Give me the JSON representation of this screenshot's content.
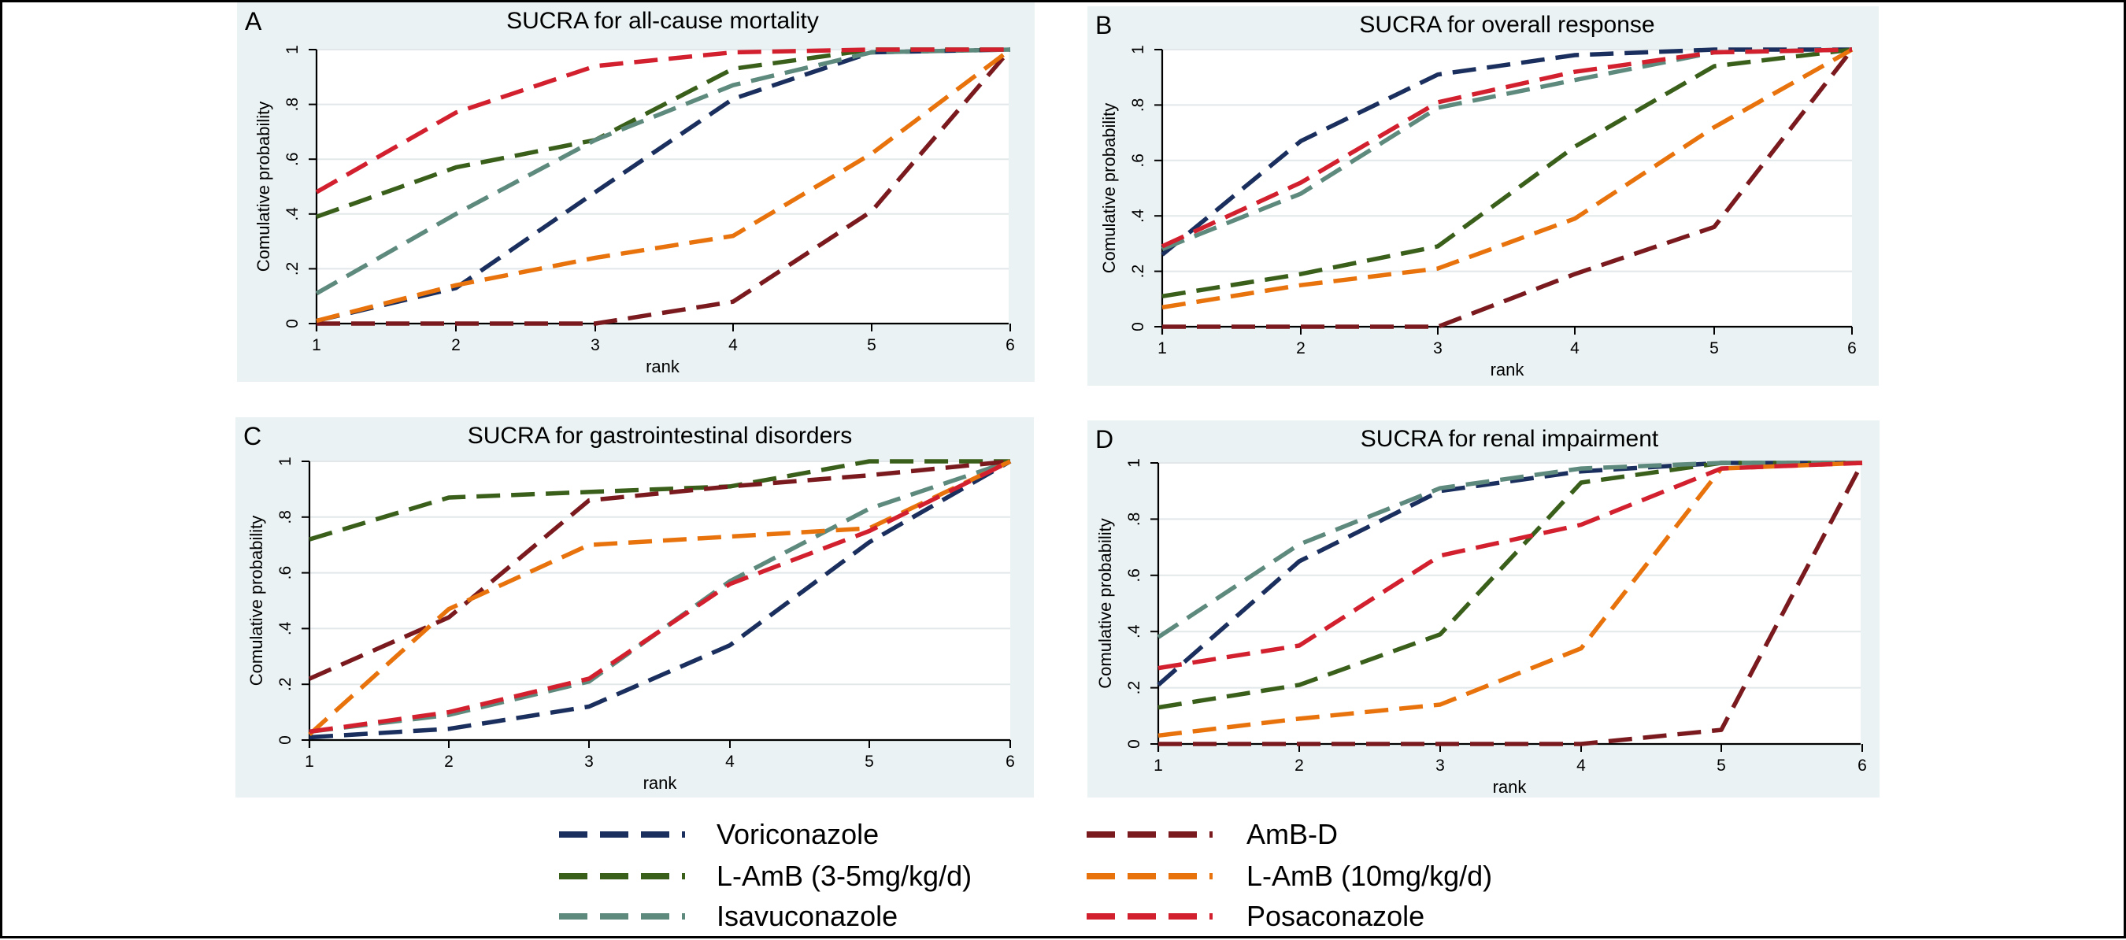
{
  "chart_data": [
    {
      "type": "line",
      "panel": "A",
      "title": "SUCRA for all-cause mortality",
      "xlabel": "rank",
      "ylabel": "Comulative probability",
      "x": [
        1,
        2,
        3,
        4,
        5,
        6
      ],
      "xticks": [
        "1",
        "2",
        "3",
        "4",
        "5",
        "6"
      ],
      "yticks": [
        "0",
        ".2",
        ".4",
        ".6",
        ".8",
        "1"
      ],
      "xlim": [
        1,
        6
      ],
      "ylim": [
        0,
        1
      ],
      "grid": true,
      "series": [
        {
          "name": "Voriconazole",
          "values": [
            0.01,
            0.13,
            0.48,
            0.82,
            0.99,
            1.0
          ]
        },
        {
          "name": "L-AmB (3-5mg/kg/d)",
          "values": [
            0.39,
            0.57,
            0.67,
            0.93,
            1.0,
            1.0
          ]
        },
        {
          "name": "Isavuconazole",
          "values": [
            0.11,
            0.4,
            0.67,
            0.87,
            0.99,
            1.0
          ]
        },
        {
          "name": "AmB-D",
          "values": [
            0.0,
            0.0,
            0.0,
            0.08,
            0.41,
            1.0
          ]
        },
        {
          "name": "L-AmB (10mg/kg/d)",
          "values": [
            0.01,
            0.14,
            0.24,
            0.32,
            0.62,
            1.0
          ]
        },
        {
          "name": "Posaconazole",
          "values": [
            0.48,
            0.77,
            0.94,
            0.99,
            1.0,
            1.0
          ]
        }
      ]
    },
    {
      "type": "line",
      "panel": "B",
      "title": "SUCRA for overall response",
      "xlabel": "rank",
      "ylabel": "Comulative probability",
      "x": [
        1,
        2,
        3,
        4,
        5,
        6
      ],
      "xticks": [
        "1",
        "2",
        "3",
        "4",
        "5",
        "6"
      ],
      "yticks": [
        "0",
        ".2",
        ".4",
        ".6",
        ".8",
        "1"
      ],
      "xlim": [
        1,
        6
      ],
      "ylim": [
        0,
        1
      ],
      "grid": true,
      "series": [
        {
          "name": "Voriconazole",
          "values": [
            0.26,
            0.67,
            0.91,
            0.98,
            1.0,
            1.0
          ]
        },
        {
          "name": "L-AmB (3-5mg/kg/d)",
          "values": [
            0.11,
            0.19,
            0.29,
            0.65,
            0.94,
            1.0
          ]
        },
        {
          "name": "Isavuconazole",
          "values": [
            0.28,
            0.48,
            0.79,
            0.89,
            0.99,
            1.0
          ]
        },
        {
          "name": "AmB-D",
          "values": [
            0.0,
            0.0,
            0.0,
            0.19,
            0.36,
            1.0
          ]
        },
        {
          "name": "L-AmB (10mg/kg/d)",
          "values": [
            0.07,
            0.15,
            0.21,
            0.39,
            0.72,
            1.0
          ]
        },
        {
          "name": "Posaconazole",
          "values": [
            0.29,
            0.52,
            0.81,
            0.92,
            0.99,
            1.0
          ]
        }
      ]
    },
    {
      "type": "line",
      "panel": "C",
      "title": "SUCRA for gastrointestinal disorders",
      "xlabel": "rank",
      "ylabel": "Comulative probability",
      "x": [
        1,
        2,
        3,
        4,
        5,
        6
      ],
      "xticks": [
        "1",
        "2",
        "3",
        "4",
        "5",
        "6"
      ],
      "yticks": [
        "0",
        ".2",
        ".4",
        ".6",
        ".8",
        "1"
      ],
      "xlim": [
        1,
        6
      ],
      "ylim": [
        0,
        1
      ],
      "grid": true,
      "series": [
        {
          "name": "Voriconazole",
          "values": [
            0.01,
            0.04,
            0.12,
            0.34,
            0.71,
            1.0
          ]
        },
        {
          "name": "L-AmB (3-5mg/kg/d)",
          "values": [
            0.72,
            0.87,
            0.89,
            0.91,
            1.0,
            1.0
          ]
        },
        {
          "name": "Isavuconazole",
          "values": [
            0.03,
            0.09,
            0.21,
            0.57,
            0.83,
            1.0
          ]
        },
        {
          "name": "AmB-D",
          "values": [
            0.22,
            0.44,
            0.86,
            0.91,
            0.95,
            1.0
          ]
        },
        {
          "name": "L-AmB (10mg/kg/d)",
          "values": [
            0.02,
            0.47,
            0.7,
            0.73,
            0.76,
            1.0
          ]
        },
        {
          "name": "Posaconazole",
          "values": [
            0.03,
            0.1,
            0.22,
            0.56,
            0.75,
            1.0
          ]
        }
      ]
    },
    {
      "type": "line",
      "panel": "D",
      "title": "SUCRA for renal impairment",
      "xlabel": "rank",
      "ylabel": "Comulative probability",
      "x": [
        1,
        2,
        3,
        4,
        5,
        6
      ],
      "xticks": [
        "1",
        "2",
        "3",
        "4",
        "5",
        "6"
      ],
      "yticks": [
        "0",
        ".2",
        ".4",
        ".6",
        ".8",
        "1"
      ],
      "xlim": [
        1,
        6
      ],
      "ylim": [
        0,
        1
      ],
      "grid": true,
      "series": [
        {
          "name": "Voriconazole",
          "values": [
            0.21,
            0.65,
            0.9,
            0.97,
            1.0,
            1.0
          ]
        },
        {
          "name": "L-AmB (3-5mg/kg/d)",
          "values": [
            0.13,
            0.21,
            0.39,
            0.93,
            1.0,
            1.0
          ]
        },
        {
          "name": "Isavuconazole",
          "values": [
            0.38,
            0.71,
            0.91,
            0.98,
            1.0,
            1.0
          ]
        },
        {
          "name": "AmB-D",
          "values": [
            0.0,
            0.0,
            0.0,
            0.0,
            0.05,
            1.0
          ]
        },
        {
          "name": "L-AmB (10mg/kg/d)",
          "values": [
            0.03,
            0.09,
            0.14,
            0.34,
            0.98,
            1.0
          ]
        },
        {
          "name": "Posaconazole",
          "values": [
            0.27,
            0.35,
            0.67,
            0.78,
            0.98,
            1.0
          ]
        }
      ]
    }
  ],
  "legend": {
    "placement": "bottom-center",
    "entries": [
      {
        "name": "Voriconazole",
        "color": "#1a2f5e"
      },
      {
        "name": "AmB-D",
        "color": "#7a1a1e"
      },
      {
        "name": "L-AmB (3-5mg/kg/d)",
        "color": "#3a5f1a"
      },
      {
        "name": "L-AmB (10mg/kg/d)",
        "color": "#e8720c"
      },
      {
        "name": "Isavuconazole",
        "color": "#5e8a7e"
      },
      {
        "name": "Posaconazole",
        "color": "#d2202f"
      }
    ]
  },
  "colors": {
    "panel_background": "#eaf2f3",
    "plot_background": "#ffffff",
    "grid": "#e2e8ea"
  }
}
